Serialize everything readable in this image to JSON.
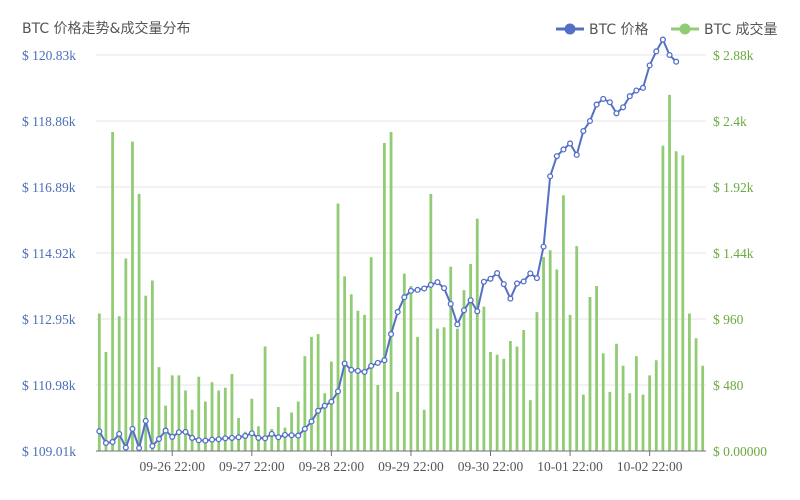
{
  "title": "BTC 价格走势&成交量分布",
  "chart_data": {
    "type": "bar+line",
    "title": "BTC 价格走势&成交量分布",
    "legend": {
      "placement": "top-right",
      "items": [
        {
          "label": "BTC 价格",
          "color": "#5470c6",
          "shape": "line-circle"
        },
        {
          "label": "BTC 成交量",
          "color": "#91cc75",
          "shape": "line-circle"
        }
      ]
    },
    "y_left": {
      "label": "",
      "ticks": [
        "$ 109.01k",
        "$ 110.98k",
        "$ 112.95k",
        "$ 114.92k",
        "$ 116.89k",
        "$ 118.86k",
        "$ 120.83k"
      ],
      "range": [
        109.01,
        120.83
      ],
      "color": "#4a6fb6"
    },
    "y_right": {
      "label": "",
      "ticks": [
        "$ 0.00000",
        "$ 480",
        "$ 960",
        "$ 1.44k",
        "$ 1.92k",
        "$ 2.4k",
        "$ 2.88k"
      ],
      "range": [
        0,
        2880
      ],
      "color": "#6aaa3f"
    },
    "x_ticks": [
      {
        "label": "09-26 22:00",
        "index": 11
      },
      {
        "label": "09-27 22:00",
        "index": 23
      },
      {
        "label": "09-28 22:00",
        "index": 35
      },
      {
        "label": "09-29 22:00",
        "index": 47
      },
      {
        "label": "09-30 22:00",
        "index": 59
      },
      {
        "label": "10-01 22:00",
        "index": 71
      },
      {
        "label": "10-02 22:00",
        "index": 83
      }
    ],
    "grid": true,
    "series": [
      {
        "name": "BTC 成交量",
        "kind": "bar",
        "axis": "right",
        "color": "#91cc75",
        "values": [
          1000,
          720,
          2320,
          980,
          1400,
          2250,
          1870,
          1130,
          1240,
          610,
          330,
          550,
          550,
          440,
          300,
          540,
          360,
          500,
          440,
          460,
          560,
          240,
          140,
          380,
          180,
          760,
          160,
          320,
          170,
          280,
          360,
          690,
          830,
          850,
          420,
          650,
          1800,
          1270,
          1140,
          1020,
          990,
          1410,
          480,
          2240,
          2320,
          430,
          1290,
          1200,
          830,
          300,
          1870,
          890,
          900,
          1340,
          890,
          1170,
          1360,
          1690,
          1050,
          720,
          700,
          670,
          800,
          760,
          880,
          370,
          1010,
          1410,
          1460,
          1320,
          1860,
          990,
          1490,
          410,
          1120,
          1200,
          710,
          430,
          780,
          620,
          420,
          690,
          410,
          550,
          660,
          2220,
          2590,
          2180,
          2150,
          1000,
          820,
          620
        ],
        "visible_range": [
          0,
          2880
        ]
      },
      {
        "name": "BTC 价格",
        "kind": "line",
        "axis": "left",
        "color": "#5470c6",
        "values": [
          109.6,
          109.25,
          109.28,
          109.52,
          109.11,
          109.67,
          109.1,
          109.91,
          109.16,
          109.37,
          109.62,
          109.43,
          109.57,
          109.58,
          109.4,
          109.33,
          109.32,
          109.35,
          109.36,
          109.39,
          109.4,
          109.42,
          109.46,
          109.54,
          109.4,
          109.39,
          109.52,
          109.42,
          109.49,
          109.48,
          109.47,
          109.67,
          109.89,
          110.21,
          110.36,
          110.48,
          110.79,
          111.62,
          111.43,
          111.4,
          111.37,
          111.55,
          111.64,
          111.72,
          112.5,
          113.16,
          113.6,
          113.79,
          113.82,
          113.86,
          113.97,
          114.05,
          113.87,
          113.4,
          112.79,
          113.21,
          113.51,
          113.18,
          114.06,
          114.15,
          114.32,
          113.99,
          113.56,
          114.01,
          114.07,
          114.31,
          114.17,
          115.11,
          117.21,
          117.81,
          118.01,
          118.19,
          117.85,
          118.56,
          118.86,
          119.35,
          119.52,
          119.42,
          119.09,
          119.27,
          119.6,
          119.77,
          119.85,
          120.52,
          120.94,
          121.29,
          120.83,
          120.63
        ]
      }
    ]
  }
}
